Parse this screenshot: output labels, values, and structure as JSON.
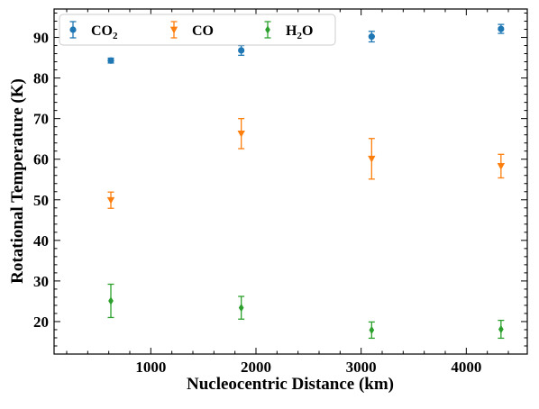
{
  "chart_data": {
    "type": "scatter",
    "xlabel": "Nucleocentric Distance (km)",
    "ylabel": "Rotational Temperature (K)",
    "xlim": [
      80,
      4580
    ],
    "ylim": [
      12,
      97
    ],
    "x_ticks": [
      1000,
      2000,
      3000,
      4000
    ],
    "y_ticks": [
      20,
      30,
      40,
      50,
      60,
      70,
      80,
      90
    ],
    "legend_placement": "top-left",
    "error_bars": true,
    "series": [
      {
        "name": "CO2",
        "name_main": "CO",
        "name_sub": "2",
        "color": "#1f77b4",
        "marker": "circle",
        "x": [
          620,
          1860,
          3100,
          4330
        ],
        "y": [
          84.3,
          86.8,
          90.2,
          92.1
        ],
        "err": [
          0.6,
          1.2,
          1.3,
          1.1
        ]
      },
      {
        "name": "CO",
        "name_main": "CO",
        "name_sub": "",
        "color": "#ff7f0e",
        "marker": "triangle-down",
        "x": [
          620,
          1860,
          3100,
          4330
        ],
        "y": [
          49.9,
          66.3,
          60.1,
          58.3
        ],
        "err": [
          2.0,
          3.7,
          5.0,
          2.9
        ]
      },
      {
        "name": "H2O",
        "name_main": "H",
        "name_sub": "2",
        "name_tail": "O",
        "color": "#2ca02c",
        "marker": "diamond",
        "x": [
          620,
          1860,
          3100,
          4330
        ],
        "y": [
          25.1,
          23.4,
          17.9,
          18.1
        ],
        "err": [
          4.1,
          2.8,
          2.0,
          2.2
        ]
      }
    ]
  }
}
